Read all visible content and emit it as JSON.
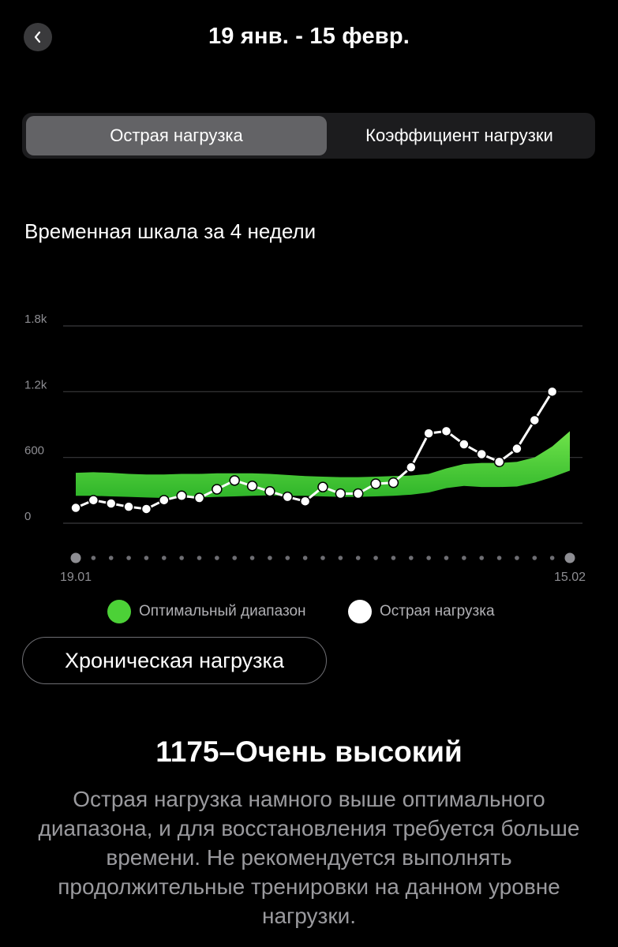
{
  "header": {
    "title": "19 янв. - 15 февр.",
    "back_icon": "chevron-left-icon"
  },
  "tabs": [
    {
      "label": "Острая нагрузка",
      "active": true
    },
    {
      "label": "Коэффициент нагрузки",
      "active": false
    }
  ],
  "section_title": "Временная шкала за 4 недели",
  "chart_data": {
    "type": "line",
    "title": "",
    "xlabel": "",
    "ylabel": "",
    "ylim": [
      0,
      1800
    ],
    "y_ticks": [
      0,
      600,
      1200,
      1800
    ],
    "y_tick_labels": [
      "0",
      "600",
      "1.2k",
      "1.8k"
    ],
    "x_tick_labels": [
      "19.01",
      "15.02"
    ],
    "grid": true,
    "legend": "bottom",
    "colors": {
      "optimal": "#4cd137",
      "acute": "#ffffff"
    },
    "series": [
      {
        "name": "Оптимальный диапазон",
        "kind": "band",
        "lower": [
          250,
          250,
          245,
          240,
          235,
          230,
          230,
          235,
          240,
          245,
          250,
          255,
          250,
          250,
          245,
          240,
          240,
          245,
          250,
          260,
          280,
          320,
          340,
          330,
          330,
          335,
          370,
          420,
          480
        ],
        "upper": [
          460,
          465,
          460,
          450,
          445,
          445,
          450,
          450,
          455,
          455,
          455,
          450,
          440,
          430,
          425,
          420,
          420,
          425,
          430,
          435,
          450,
          500,
          540,
          550,
          550,
          560,
          600,
          700,
          840
        ]
      },
      {
        "name": "Острая нагрузка",
        "kind": "line",
        "values": [
          140,
          210,
          180,
          150,
          130,
          210,
          250,
          230,
          310,
          390,
          340,
          290,
          240,
          200,
          330,
          270,
          270,
          360,
          370,
          510,
          820,
          840,
          720,
          630,
          560,
          680,
          940,
          1200,
          null
        ]
      }
    ]
  },
  "legend": {
    "optimal_label": "Оптимальный диапазон",
    "acute_label": "Острая нагрузка"
  },
  "chronic_button": {
    "label": "Хроническая нагрузка"
  },
  "status": {
    "title": "1175–Очень высокий",
    "description": "Острая нагрузка намного выше оптимального диапазона, и для восстановления требуется больше времени. Не рекомендуется выполнять продолжительные тренировки на данном уровне нагрузки."
  }
}
